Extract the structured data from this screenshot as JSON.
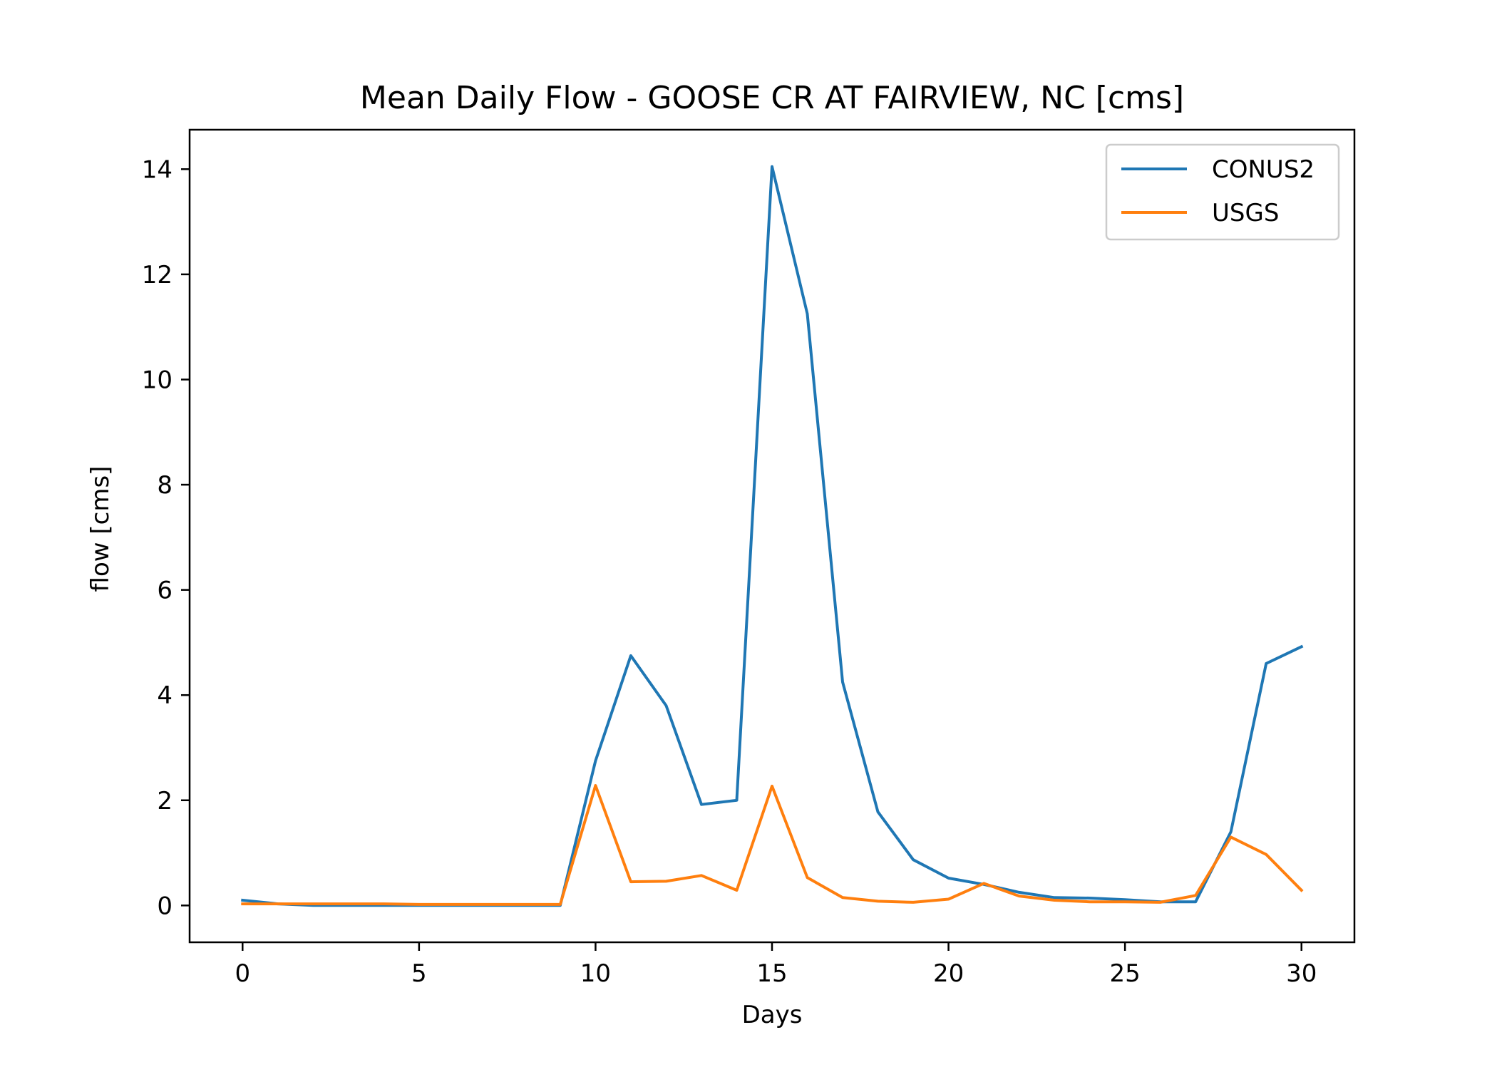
{
  "chart_data": {
    "type": "line",
    "title": "Mean Daily Flow - GOOSE CR AT FAIRVIEW, NC [cms]",
    "xlabel": "Days",
    "ylabel": "flow [cms]",
    "xlim": [
      -1.5,
      31.5
    ],
    "ylim": [
      -0.7,
      14.75
    ],
    "xticks": [
      0,
      5,
      10,
      15,
      20,
      25,
      30
    ],
    "yticks": [
      0,
      2,
      4,
      6,
      8,
      10,
      12,
      14
    ],
    "xtick_labels": [
      "0",
      "5",
      "10",
      "15",
      "20",
      "25",
      "30"
    ],
    "ytick_labels": [
      "0",
      "2",
      "4",
      "6",
      "8",
      "10",
      "12",
      "14"
    ],
    "grid": false,
    "legend_position": "top-right",
    "x": [
      0,
      1,
      2,
      3,
      4,
      5,
      6,
      7,
      8,
      9,
      10,
      11,
      12,
      13,
      14,
      15,
      16,
      17,
      18,
      19,
      20,
      21,
      22,
      23,
      24,
      25,
      26,
      27,
      28,
      29,
      30
    ],
    "series": [
      {
        "name": "CONUS2",
        "color": "#1f77b4",
        "values": [
          0.1,
          0.03,
          0.0,
          0.0,
          0.0,
          0.0,
          0.0,
          0.0,
          0.0,
          0.0,
          2.75,
          4.75,
          3.8,
          1.92,
          2.0,
          14.05,
          11.25,
          4.25,
          1.78,
          0.87,
          0.52,
          0.4,
          0.25,
          0.15,
          0.14,
          0.11,
          0.07,
          0.07,
          1.4,
          4.6,
          4.92
        ]
      },
      {
        "name": "USGS",
        "color": "#ff7f0e",
        "values": [
          0.03,
          0.03,
          0.03,
          0.03,
          0.03,
          0.02,
          0.02,
          0.02,
          0.02,
          0.02,
          2.28,
          0.45,
          0.46,
          0.57,
          0.29,
          2.27,
          0.53,
          0.15,
          0.08,
          0.06,
          0.12,
          0.42,
          0.18,
          0.1,
          0.07,
          0.07,
          0.06,
          0.19,
          1.3,
          0.97,
          0.29
        ]
      }
    ]
  }
}
